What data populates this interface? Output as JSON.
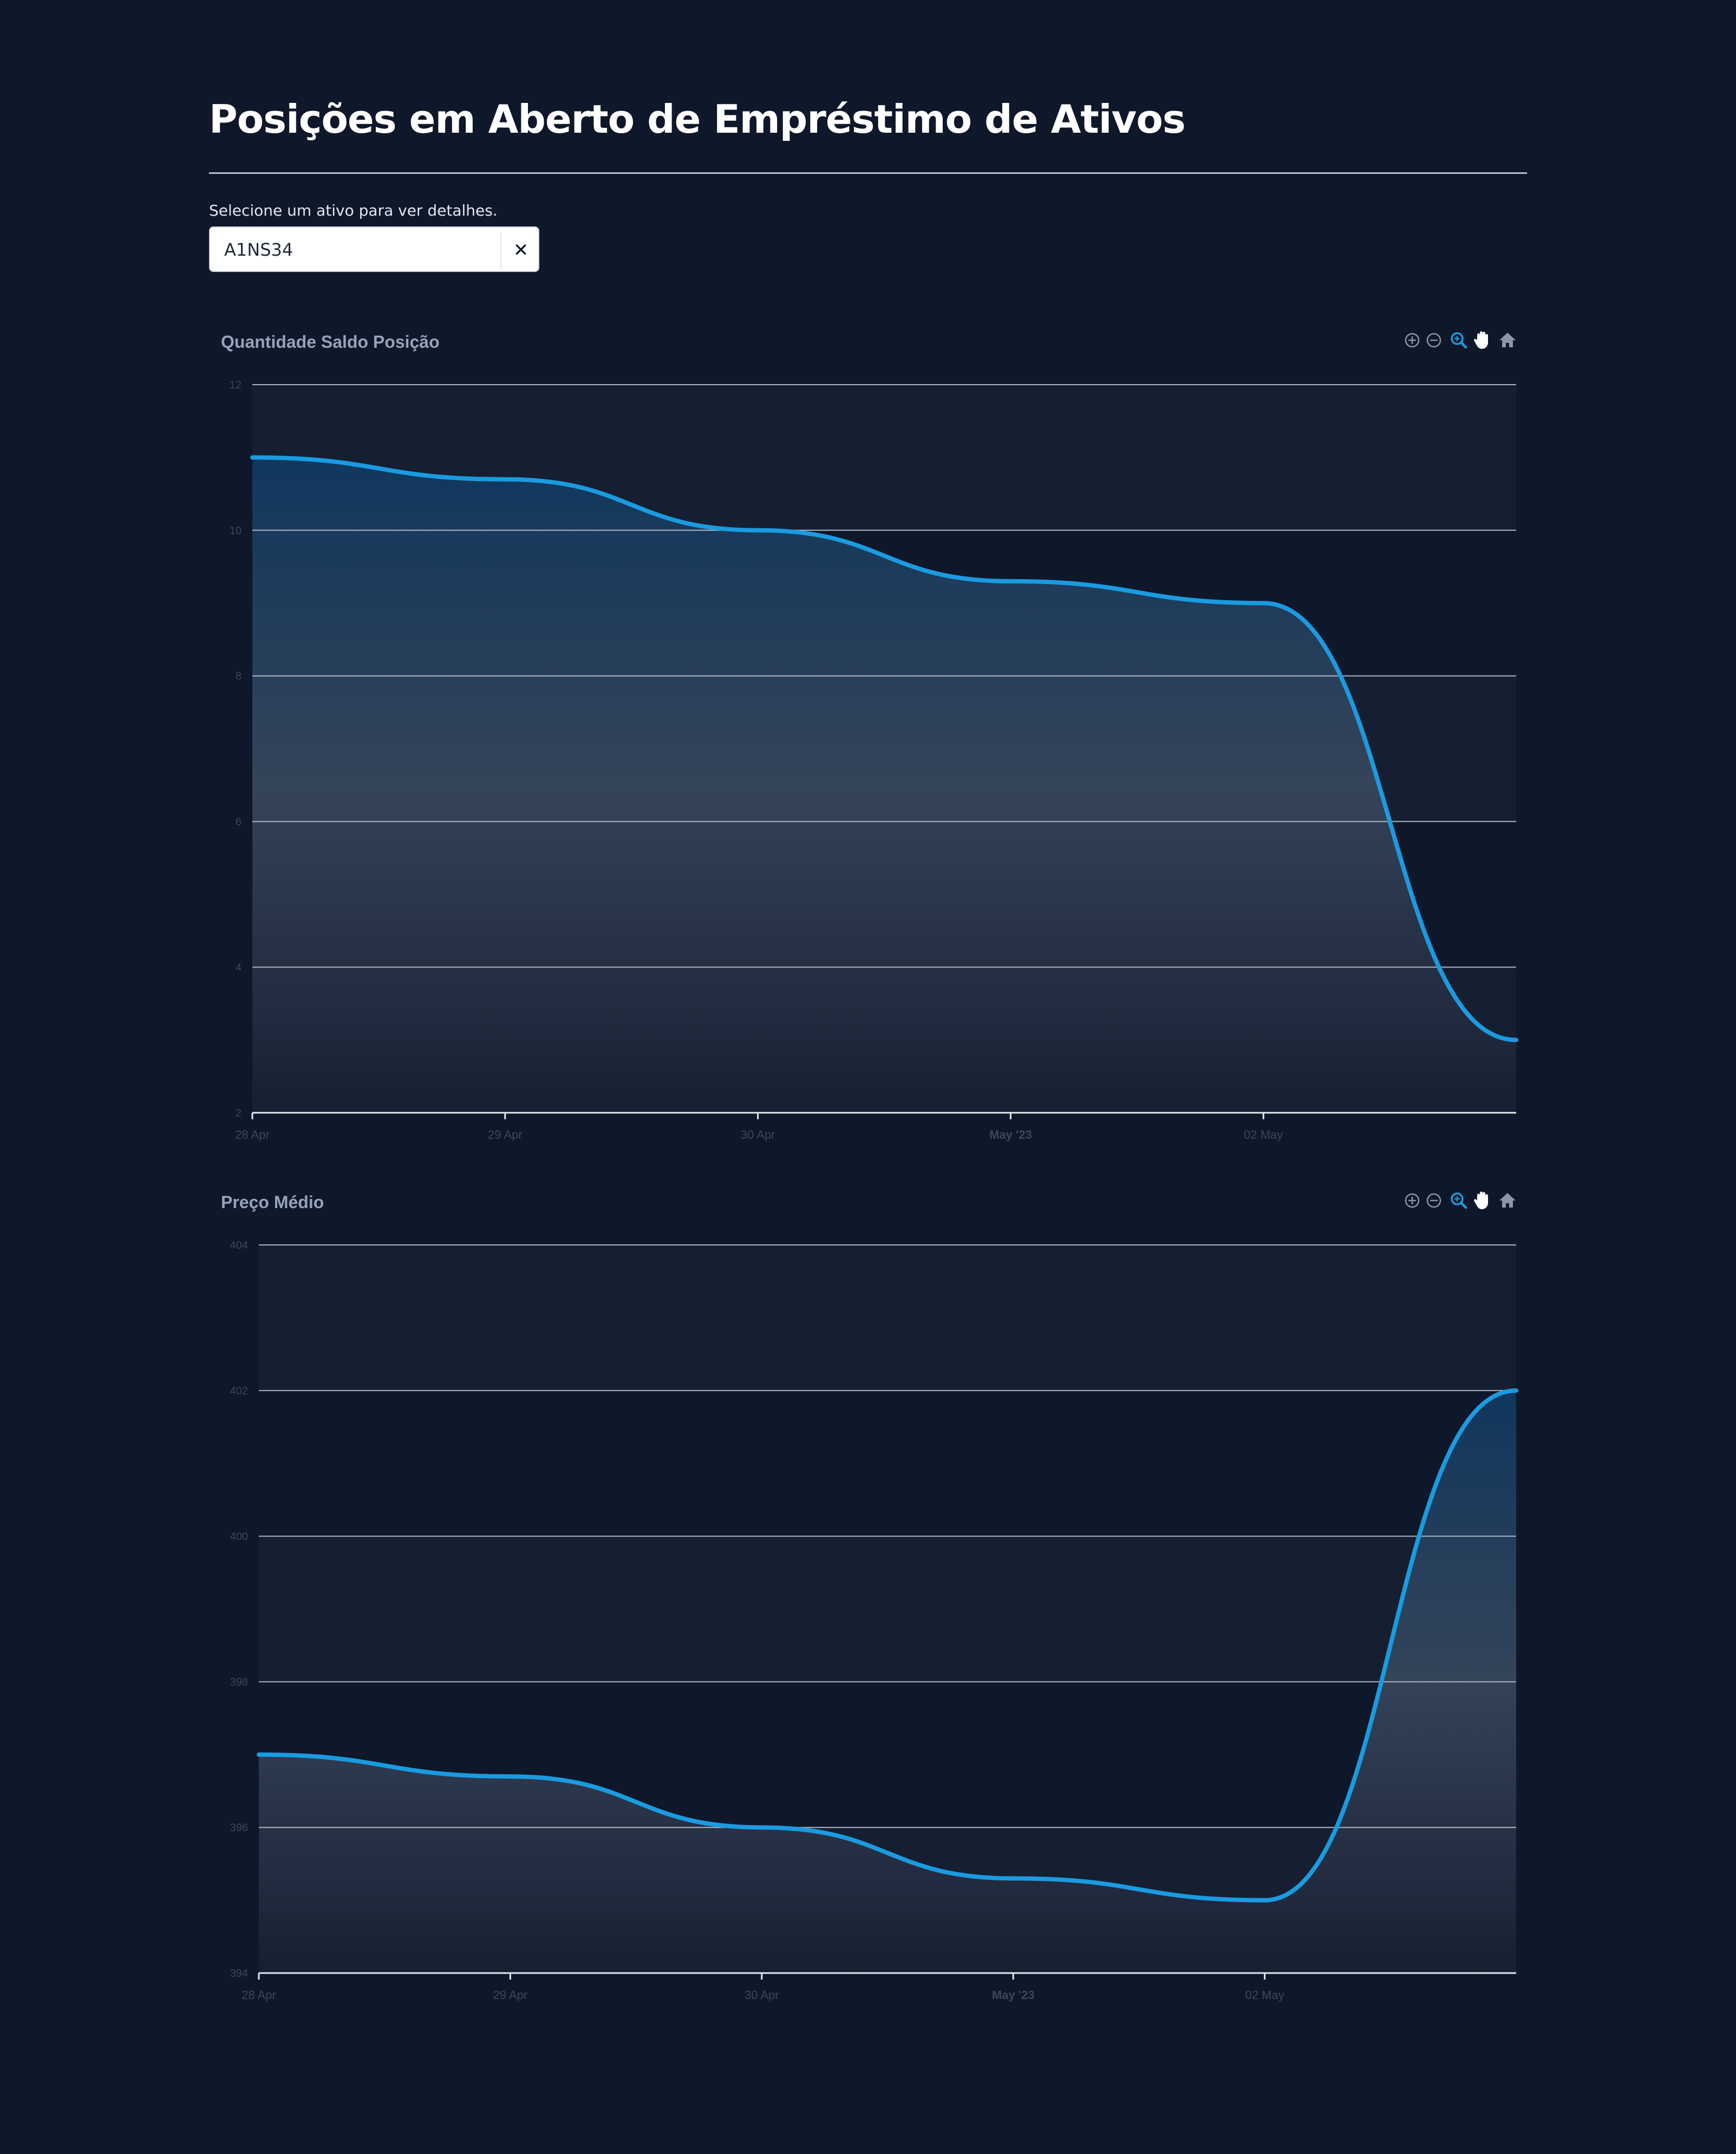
{
  "page": {
    "title": "Posições em Aberto de Empréstimo de Ativos",
    "select_label": "Selecione um ativo para ver detalhes.",
    "selected_asset": "A1NS34",
    "clear_symbol": "✕"
  },
  "colors": {
    "background": "#0f172a",
    "band": "#151f31",
    "line": "#1a9be0",
    "grid": "#aeb5c2",
    "axis": "#e2e8f0",
    "tool_active": "#1a9be0",
    "tool_idle": "#8c96a8"
  },
  "toolbar_icons": [
    "zoom-in-icon",
    "zoom-out-icon",
    "selection-zoom-icon",
    "pan-hand-icon",
    "reset-home-icon"
  ],
  "chart_data": [
    {
      "type": "area",
      "title": "Quantidade Saldo Posição",
      "x": [
        "2023-04-28",
        "2023-04-29",
        "2023-04-30",
        "2023-05-01",
        "2023-05-02",
        "2023-05-03"
      ],
      "x_tick_labels": [
        "28 Apr",
        "29 Apr",
        "30 Apr",
        "May '23",
        "02 May"
      ],
      "series": [
        {
          "values": [
            11,
            10.7,
            10,
            9.3,
            9,
            3
          ]
        }
      ],
      "ylim": [
        2,
        12
      ],
      "y_ticks": [
        2,
        4,
        6,
        8,
        10,
        12
      ],
      "grid": true,
      "curve": "smooth"
    },
    {
      "type": "area",
      "title": "Preço Médio",
      "x": [
        "2023-04-28",
        "2023-04-29",
        "2023-04-30",
        "2023-05-01",
        "2023-05-02",
        "2023-05-03"
      ],
      "x_tick_labels": [
        "28 Apr",
        "29 Apr",
        "30 Apr",
        "May '23",
        "02 May"
      ],
      "series": [
        {
          "values": [
            397,
            396.7,
            396,
            395.3,
            395,
            402
          ]
        }
      ],
      "ylim": [
        394,
        404
      ],
      "y_ticks": [
        394,
        396,
        398,
        400,
        402,
        404
      ],
      "grid": true,
      "curve": "smooth"
    }
  ]
}
